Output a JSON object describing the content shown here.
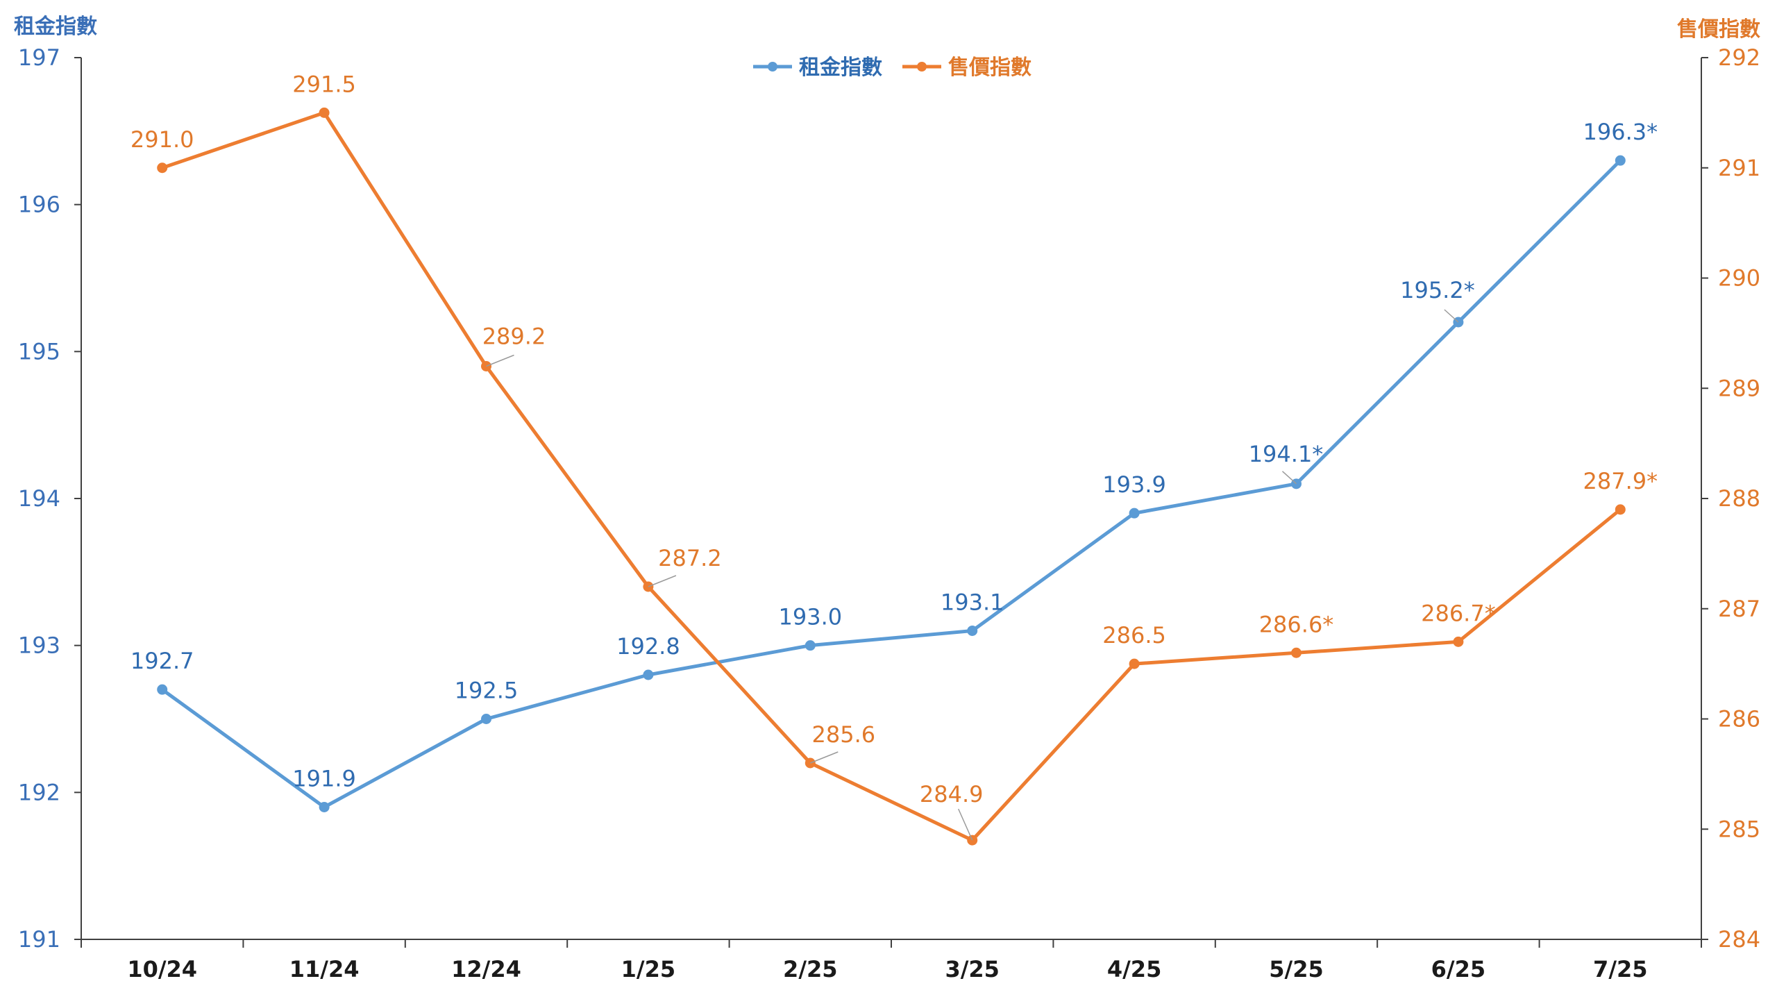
{
  "chart_data": {
    "type": "line",
    "categories": [
      "10/24",
      "11/24",
      "12/24",
      "1/25",
      "2/25",
      "3/25",
      "4/25",
      "5/25",
      "6/25",
      "7/25"
    ],
    "axes": {
      "left": {
        "title": "租金指數",
        "range": [
          191,
          197
        ],
        "ticks": [
          "191",
          "192",
          "193",
          "194",
          "195",
          "196",
          "197"
        ]
      },
      "right": {
        "title": "售價指數",
        "range": [
          284,
          292
        ],
        "ticks": [
          "284",
          "285",
          "286",
          "287",
          "288",
          "289",
          "290",
          "291",
          "292"
        ]
      }
    },
    "series": [
      {
        "name": "租金指數",
        "axis": "left",
        "color": "#5b9bd5",
        "label_color": "#2f6bb0",
        "values": [
          192.7,
          191.9,
          192.5,
          192.8,
          193.0,
          193.1,
          193.9,
          194.1,
          195.2,
          196.3
        ],
        "labels": [
          "192.7",
          "191.9",
          "192.5",
          "192.8",
          "193.0",
          "193.1",
          "193.9",
          "194.1*",
          "195.2*",
          "196.3*"
        ]
      },
      {
        "name": "售價指數",
        "axis": "right",
        "color": "#ed7d31",
        "label_color": "#e0792b",
        "values": [
          291.0,
          291.5,
          289.2,
          287.2,
          285.6,
          284.9,
          286.5,
          286.6,
          286.7,
          287.9
        ],
        "labels": [
          "291.0",
          "291.5",
          "289.2",
          "287.2",
          "285.6",
          "284.9",
          "286.5",
          "286.6*",
          "286.7*",
          "287.9*"
        ]
      }
    ],
    "legend": "top-center",
    "grid": false
  }
}
